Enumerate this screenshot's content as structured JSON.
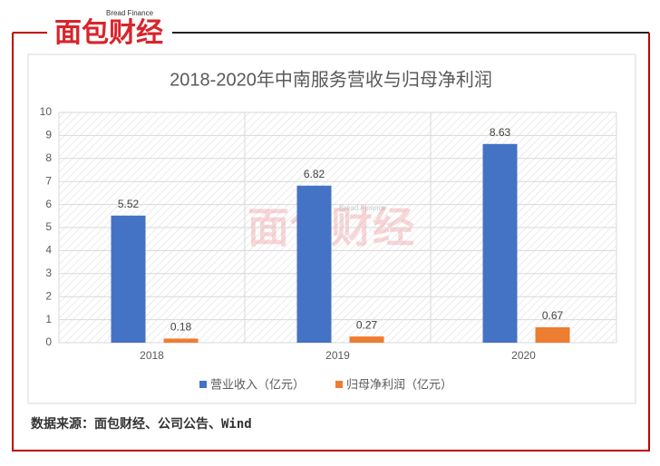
{
  "logo": {
    "text": "面包财经",
    "subtext": "Bread Finance"
  },
  "chart_data": {
    "type": "bar",
    "title": "2018-2020年中南服务营收与归母净利润",
    "categories": [
      "2018",
      "2019",
      "2020"
    ],
    "series": [
      {
        "name": "营业收入（亿元）",
        "color": "#4472c4",
        "values": [
          5.52,
          6.82,
          8.63
        ]
      },
      {
        "name": "归母净利润（亿元）",
        "color": "#ed7d31",
        "values": [
          0.18,
          0.27,
          0.67
        ]
      }
    ],
    "ylim": [
      0,
      10
    ],
    "yticks": [
      0,
      1,
      2,
      3,
      4,
      5,
      6,
      7,
      8,
      9,
      10
    ],
    "grid": true,
    "data_labels": true,
    "legend": "bottom"
  },
  "source": "数据来源：面包财经、公司公告、Wind"
}
